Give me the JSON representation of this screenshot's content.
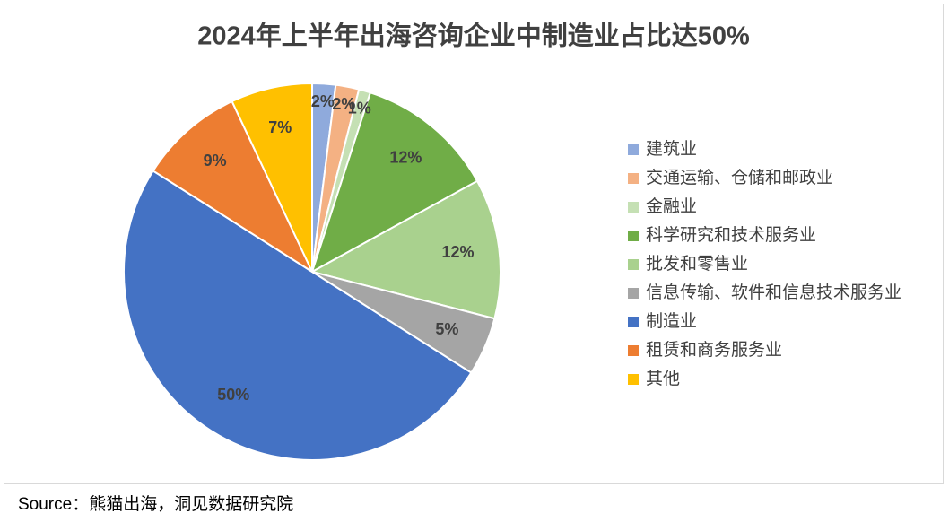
{
  "chart_data": {
    "type": "pie",
    "title": "2024年上半年出海咨询企业中制造业占比达50%",
    "categories": [
      "建筑业",
      "交通运输、仓储和邮政业",
      "金融业",
      "科学研究和技术服务业",
      "批发和零售业",
      "信息传输、软件和信息技术服务业",
      "制造业",
      "租赁和商务服务业",
      "其他"
    ],
    "values": [
      2,
      2,
      1,
      12,
      12,
      5,
      50,
      9,
      7
    ],
    "value_labels": [
      "2%",
      "2%",
      "1%",
      "12%",
      "12%",
      "5%",
      "50%",
      "9%",
      "7%"
    ],
    "colors": [
      "#8faadc",
      "#f4b183",
      "#c5e0b4",
      "#70ad47",
      "#a9d18e",
      "#a5a5a5",
      "#4472c4",
      "#ed7d31",
      "#ffc000"
    ],
    "legend": "right"
  },
  "source": "Source：熊猫出海，洞见数据研究院"
}
